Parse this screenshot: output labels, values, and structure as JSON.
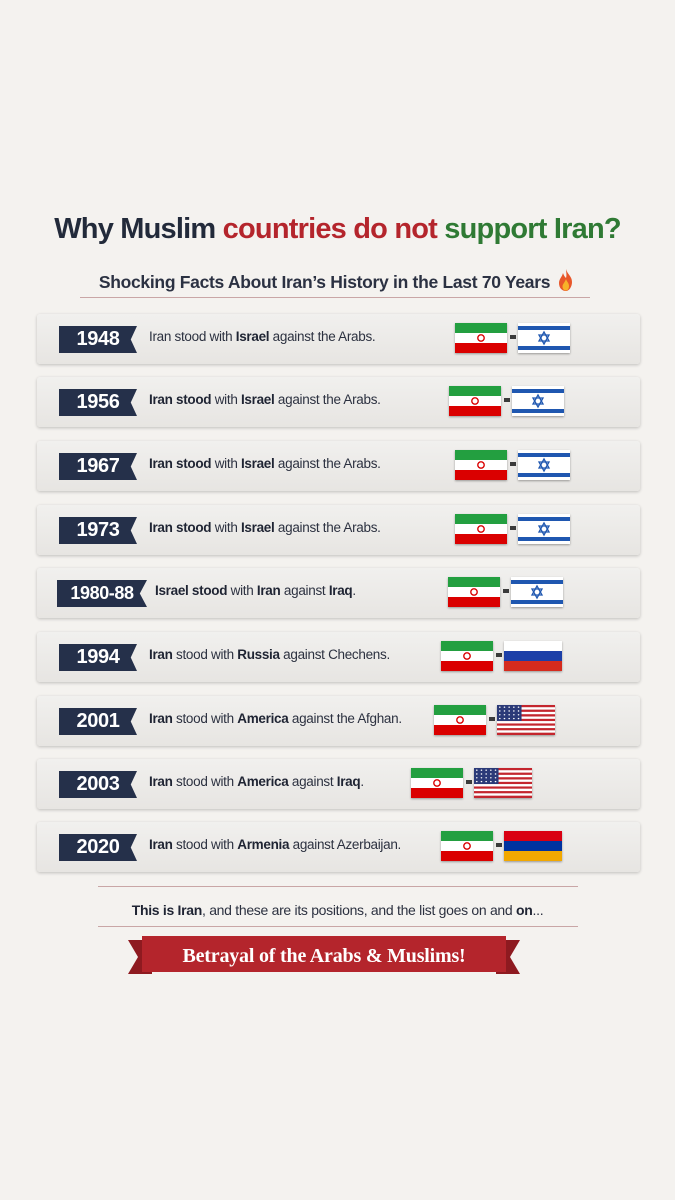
{
  "header": {
    "title_part1": "Why Muslim ",
    "title_part2": "countries do not ",
    "title_part3": "support Iran?",
    "subtitle": "Shocking Facts About Iran’s History in the Last 70 Years",
    "subtitle_icon": "flame-icon"
  },
  "colors": {
    "navy": "#25304a",
    "red": "#b4252c",
    "green": "#2f7a34",
    "text": "#2c3140"
  },
  "rows": [
    {
      "year": "1948",
      "parts": [
        [
          "Iran",
          false
        ],
        [
          " stood with ",
          false
        ],
        [
          "Israel",
          true
        ],
        [
          " against the Arabs.",
          false
        ]
      ],
      "flags": [
        "iran-flag-icon",
        "israel-flag-icon"
      ]
    },
    {
      "year": "1956",
      "parts": [
        [
          "Iran stood",
          true
        ],
        [
          " with ",
          false
        ],
        [
          "Israel",
          true
        ],
        [
          " against the Arabs.",
          false
        ]
      ],
      "flags": [
        "iran-flag-icon",
        "israel-flag-icon"
      ]
    },
    {
      "year": "1967",
      "parts": [
        [
          "Iran stood",
          true
        ],
        [
          " with ",
          false
        ],
        [
          "Israel",
          true
        ],
        [
          " against the Arabs.",
          false
        ]
      ],
      "flags": [
        "iran-flag-icon",
        "israel-flag-icon"
      ]
    },
    {
      "year": "1973",
      "parts": [
        [
          "Iran stood",
          true
        ],
        [
          " with ",
          false
        ],
        [
          "Israel",
          true
        ],
        [
          " against the Arabs.",
          false
        ]
      ],
      "flags": [
        "iran-flag-icon",
        "israel-flag-icon"
      ]
    },
    {
      "year": "1980-88",
      "parts": [
        [
          "Israel stood",
          true
        ],
        [
          " with ",
          false
        ],
        [
          "Iran",
          true
        ],
        [
          " against ",
          false
        ],
        [
          "Iraq",
          true
        ],
        [
          ".",
          false
        ]
      ],
      "flags": [
        "iran-flag-icon",
        "israel-flag-icon"
      ]
    },
    {
      "year": "1994",
      "parts": [
        [
          "Iran",
          true
        ],
        [
          " stood with ",
          false
        ],
        [
          "Russia",
          true
        ],
        [
          " against Chechens.",
          false
        ]
      ],
      "flags": [
        "iran-flag-icon",
        "russia-flag-icon"
      ]
    },
    {
      "year": "2001",
      "parts": [
        [
          "Iran",
          true
        ],
        [
          " stood with ",
          false
        ],
        [
          "America",
          true
        ],
        [
          " against the Afghan.",
          false
        ]
      ],
      "flags": [
        "iran-flag-icon",
        "usa-flag-icon"
      ]
    },
    {
      "year": "2003",
      "parts": [
        [
          "Iran",
          true
        ],
        [
          " stood with ",
          false
        ],
        [
          "America",
          true
        ],
        [
          " against ",
          false
        ],
        [
          "Iraq",
          true
        ],
        [
          ".",
          false
        ]
      ],
      "flags": [
        "iran-flag-icon",
        "usa-flag-icon"
      ]
    },
    {
      "year": "2020",
      "parts": [
        [
          "Iran",
          true
        ],
        [
          " stood with ",
          false
        ],
        [
          "Armenia",
          true
        ],
        [
          " against Azerbaijan.",
          false
        ]
      ],
      "flags": [
        "iran-flag-icon",
        "armenia-flag-icon"
      ]
    }
  ],
  "footer": {
    "text_bold": "This is Iran",
    "text_rest": ", and these are its positions, and the list goes on and ",
    "text_bold_end": "on",
    "text_ellipsis": "...",
    "banner": "Betrayal of the Arabs & Muslims!"
  }
}
